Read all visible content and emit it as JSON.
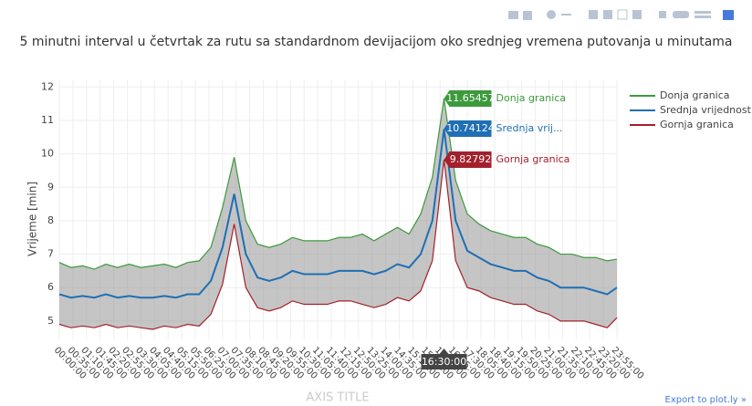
{
  "chart_data": {
    "type": "line",
    "title": "5 minutni interval u četvrtak za rutu sa standardnom devijacijom oko srednjeg vremena putovanja u minutama",
    "y_label": "Vrijeme [min]",
    "x_label": "AXIS TITLE",
    "export_link": "Export to plot.ly »",
    "x": [
      "00:00:00",
      "00:30:00",
      "01:00:00",
      "01:30:00",
      "02:00:00",
      "02:30:00",
      "03:00:00",
      "03:30:00",
      "04:00:00",
      "04:30:00",
      "05:00:00",
      "05:30:00",
      "06:00:00",
      "06:30:00",
      "07:00:00",
      "07:30:00",
      "08:00:00",
      "08:30:00",
      "09:00:00",
      "09:30:00",
      "10:00:00",
      "10:30:00",
      "11:00:00",
      "11:30:00",
      "12:00:00",
      "12:30:00",
      "13:00:00",
      "13:30:00",
      "14:00:00",
      "14:30:00",
      "15:00:00",
      "15:30:00",
      "16:00:00",
      "16:30:00",
      "17:00:00",
      "17:30:00",
      "18:00:00",
      "18:30:00",
      "19:00:00",
      "19:30:00",
      "20:00:00",
      "20:30:00",
      "21:00:00",
      "21:30:00",
      "22:00:00",
      "22:30:00",
      "23:00:00",
      "23:30:00",
      "23:55:00"
    ],
    "series": [
      {
        "name": "Donja granica",
        "color": "#3c9a3c",
        "values": [
          6.75,
          6.6,
          6.65,
          6.55,
          6.7,
          6.6,
          6.7,
          6.6,
          6.65,
          6.7,
          6.6,
          6.75,
          6.8,
          7.2,
          8.4,
          9.9,
          8.0,
          7.3,
          7.2,
          7.3,
          7.5,
          7.4,
          7.4,
          7.4,
          7.5,
          7.5,
          7.6,
          7.4,
          7.6,
          7.8,
          7.6,
          8.2,
          9.3,
          11.65457,
          9.2,
          8.2,
          7.9,
          7.7,
          7.6,
          7.5,
          7.5,
          7.3,
          7.2,
          7.0,
          7.0,
          6.9,
          6.9,
          6.8,
          6.85
        ]
      },
      {
        "name": "Srednja vrijednost",
        "color": "#1f6fb4",
        "values": [
          5.8,
          5.7,
          5.75,
          5.7,
          5.8,
          5.7,
          5.75,
          5.7,
          5.7,
          5.75,
          5.7,
          5.8,
          5.8,
          6.2,
          7.2,
          8.8,
          7.0,
          6.3,
          6.2,
          6.3,
          6.5,
          6.4,
          6.4,
          6.4,
          6.5,
          6.5,
          6.5,
          6.4,
          6.5,
          6.7,
          6.6,
          7.0,
          8.0,
          10.74124,
          8.0,
          7.1,
          6.9,
          6.7,
          6.6,
          6.5,
          6.5,
          6.3,
          6.2,
          6.0,
          6.0,
          6.0,
          5.9,
          5.8,
          6.0
        ]
      },
      {
        "name": "Gornja granica",
        "color": "#a3202c",
        "values": [
          4.9,
          4.8,
          4.85,
          4.8,
          4.9,
          4.8,
          4.85,
          4.8,
          4.75,
          4.85,
          4.8,
          4.9,
          4.85,
          5.2,
          6.1,
          7.9,
          6.0,
          5.4,
          5.3,
          5.4,
          5.6,
          5.5,
          5.5,
          5.5,
          5.6,
          5.6,
          5.5,
          5.4,
          5.5,
          5.7,
          5.6,
          5.9,
          6.8,
          9.82792,
          6.8,
          6.0,
          5.9,
          5.7,
          5.6,
          5.5,
          5.5,
          5.3,
          5.2,
          5.0,
          5.0,
          5.0,
          4.9,
          4.8,
          5.1
        ]
      }
    ],
    "hover": {
      "index": 33,
      "x": "16:30:00",
      "names": [
        "Donja granica",
        "Srednja vrij...",
        "Gornja granica"
      ]
    },
    "xlim": [
      "00:00:00",
      "23:55:00"
    ],
    "xticks": [
      "00:00:00",
      "00:35:00",
      "01:10:00",
      "01:45:00",
      "02:20:00",
      "02:55:00",
      "03:30:00",
      "04:05:00",
      "04:40:00",
      "05:15:00",
      "05:50:00",
      "06:25:00",
      "07:00:00",
      "07:35:00",
      "08:10:00",
      "08:45:00",
      "09:20:00",
      "09:55:00",
      "10:30:00",
      "11:05:00",
      "11:40:00",
      "12:15:00",
      "12:50:00",
      "13:25:00",
      "14:00:00",
      "14:35:00",
      "15:10:00",
      "15:45:00",
      "16:20:00",
      "16:55:00",
      "17:30:00",
      "18:05:00",
      "18:40:00",
      "19:15:00",
      "19:50:00",
      "20:25:00",
      "21:00:00",
      "21:35:00",
      "22:10:00",
      "22:45:00",
      "23:20:00",
      "23:55:00"
    ],
    "ylim": [
      4.45,
      12.2
    ],
    "yticks": [
      5,
      6,
      7,
      8,
      9,
      10,
      11,
      12
    ],
    "grid": true,
    "legend": "right"
  }
}
